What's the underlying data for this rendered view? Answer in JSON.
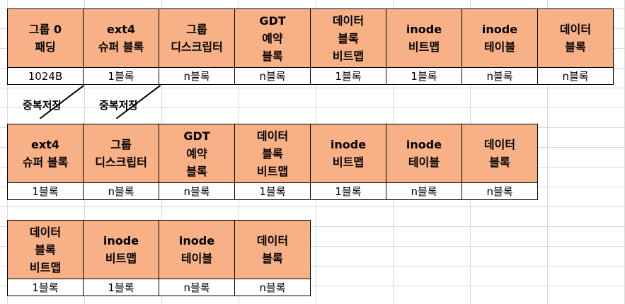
{
  "row1": {
    "headers": [
      "그룹 0\n패딩",
      "ext4\n슈퍼 블록",
      "그룹\n디스크립터",
      "GDT\n예약\n블록",
      "데이터\n블록\n비트맵",
      "inode\n비트맵",
      "inode\n테이블",
      "데이터\n블록"
    ],
    "sizes": [
      "1024B",
      "1블록",
      "n블록",
      "n블록",
      "1블록",
      "1블록",
      "n블록",
      "n블록"
    ]
  },
  "duplicate_labels": [
    "중복저장",
    "중복저장"
  ],
  "row2": {
    "headers": [
      "ext4\n슈퍼 블록",
      "그룹\n디스크립터",
      "GDT\n예약\n블록",
      "데이터\n블록\n비트맵",
      "inode\n비트맵",
      "inode\n테이블",
      "데이터\n블록"
    ],
    "sizes": [
      "1블록",
      "n블록",
      "n블록",
      "1블록",
      "1블록",
      "n블록",
      "n블록"
    ]
  },
  "row3": {
    "headers": [
      "데이터\n블록\n비트맵",
      "inode\n비트맵",
      "inode\n테이블",
      "데이터\n블록"
    ],
    "sizes": [
      "1블록",
      "1블록",
      "n블록",
      "n블록"
    ]
  },
  "colors": {
    "header_fill": "#f8b086",
    "border": "#000000",
    "gridline": "#d9d9d9"
  }
}
